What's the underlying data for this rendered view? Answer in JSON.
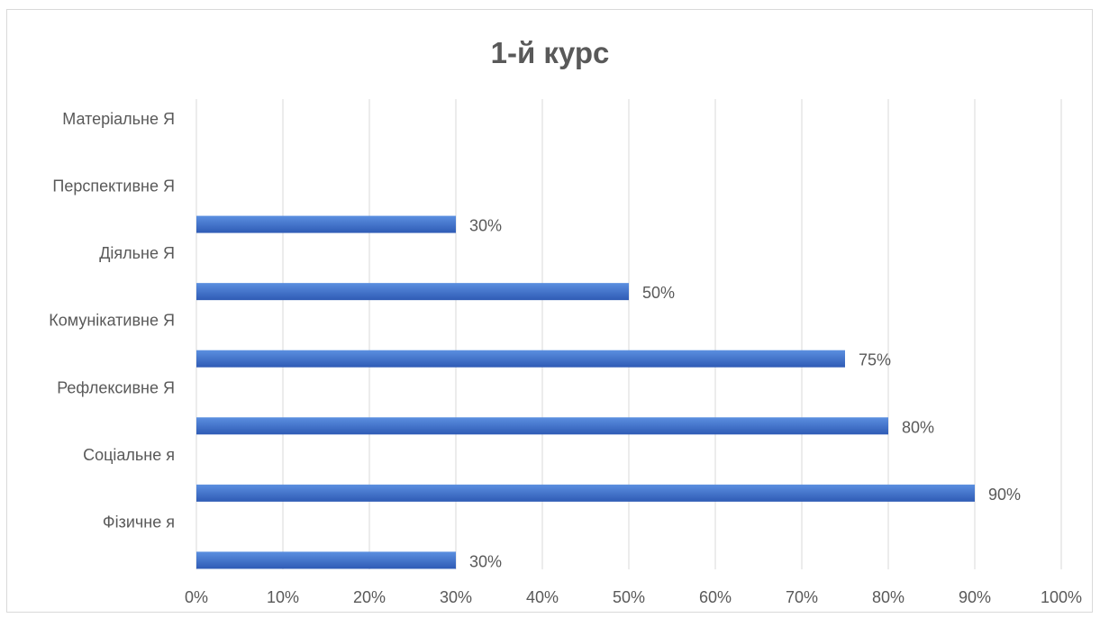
{
  "chart_data": {
    "type": "bar",
    "orientation": "horizontal",
    "title": "1-й курс",
    "categories": [
      "Фізичне я",
      "Соціальне я",
      "Рефлексивне Я",
      "Комунікативне Я",
      "Діяльне Я",
      "Перспективне Я",
      "Матеріальне Я"
    ],
    "values": [
      30,
      90,
      80,
      75,
      50,
      30,
      null
    ],
    "data_labels": [
      "30%",
      "90%",
      "80%",
      "75%",
      "50%",
      "30%",
      ""
    ],
    "xlim": [
      0,
      100
    ],
    "x_ticks": [
      0,
      10,
      20,
      30,
      40,
      50,
      60,
      70,
      80,
      90,
      100
    ],
    "x_tick_labels": [
      "0%",
      "10%",
      "20%",
      "30%",
      "40%",
      "50%",
      "60%",
      "70%",
      "80%",
      "90%",
      "100%"
    ],
    "xlabel": "",
    "ylabel": "",
    "grid": "vertical",
    "legend": "none",
    "colors": {
      "bar_light": "#5b8fe0",
      "bar_dark": "#2f5bb5",
      "grid": "#d9d9d9",
      "text": "#595959"
    }
  }
}
